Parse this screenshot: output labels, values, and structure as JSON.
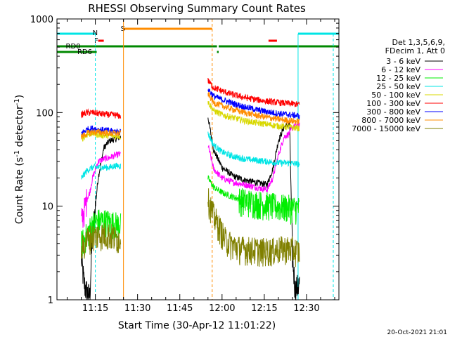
{
  "chart_data": {
    "type": "line",
    "title": "RHESSI Observing Summary Count Rates",
    "xlabel": "Start Time (30-Apr-12 11:01:22)",
    "ylabel_main": "Count Rate (s",
    "ylabel_sup1": "-1",
    "ylabel_mid": " detector",
    "ylabel_sup2": "-1",
    "ylabel_end": ")",
    "y_scale": "log",
    "ylim": [
      1,
      1000
    ],
    "x_tick_labels": [
      "11:15",
      "11:30",
      "11:45",
      "12:00",
      "12:15",
      "12:30"
    ],
    "x_tick_minutes": [
      15,
      30,
      45,
      60,
      75,
      90
    ],
    "xlim_minutes": [
      1.37,
      101.5
    ],
    "y_tick_labels": [
      "1",
      "10",
      "100",
      "1000"
    ],
    "y_tick_values": [
      1,
      10,
      100,
      1000
    ],
    "legend": {
      "header1": "Det 1,3,5,6,9,",
      "header2": "FDecim 1, Att 0",
      "placement": "right",
      "entries": [
        {
          "label": "3 - 6 keV",
          "color": "#000000"
        },
        {
          "label": "6 - 12 keV",
          "color": "#ff00ff"
        },
        {
          "label": "12 - 25 keV",
          "color": "#00ee00"
        },
        {
          "label": "25 - 50 keV",
          "color": "#00e5e5"
        },
        {
          "label": "50 - 100 keV",
          "color": "#d8d800"
        },
        {
          "label": "100 - 300 keV",
          "color": "#ff0000"
        },
        {
          "label": "300 - 800 keV",
          "color": "#0000ff"
        },
        {
          "label": "800 - 7000 keV",
          "color": "#ff8c00"
        },
        {
          "label": "7000 - 15000 keV",
          "color": "#808000"
        }
      ]
    },
    "flags": [
      {
        "label": "N",
        "color": "#00e5e5"
      },
      {
        "label": "F",
        "color": "#ff0000"
      },
      {
        "label": "S",
        "color": "#ff8c00"
      },
      {
        "label": "RD0",
        "color": "#008800"
      },
      {
        "label": "RD6",
        "color": "#008800"
      }
    ],
    "segments": [
      {
        "start": 10.0,
        "end": 24.0
      },
      {
        "start": 55.0,
        "end": 87.5
      }
    ],
    "series": [
      {
        "name": "3 - 6 keV",
        "color": "#000000",
        "seg": [
          [
            [
              10,
              2.8
            ],
            [
              11,
              1.5
            ],
            [
              12,
              1.2
            ],
            [
              13,
              1.1
            ],
            [
              14,
              5
            ],
            [
              16,
              20
            ],
            [
              18,
              42
            ],
            [
              20,
              50
            ],
            [
              22,
              52
            ],
            [
              24,
              55
            ]
          ],
          [
            [
              55,
              90
            ],
            [
              57,
              40
            ],
            [
              60,
              26
            ],
            [
              64,
              21
            ],
            [
              68,
              19
            ],
            [
              72,
              18
            ],
            [
              76,
              17
            ],
            [
              78,
              25
            ],
            [
              80,
              50
            ],
            [
              82,
              70
            ],
            [
              84,
              75
            ],
            [
              85,
              3
            ],
            [
              86,
              1.3
            ],
            [
              87.5,
              1.5
            ]
          ]
        ]
      },
      {
        "name": "6 - 12 keV",
        "color": "#ff00ff",
        "seg": [
          [
            [
              10,
              7
            ],
            [
              11,
              9
            ],
            [
              12,
              12
            ],
            [
              13,
              14
            ],
            [
              14,
              20
            ],
            [
              16,
              30
            ],
            [
              18,
              32
            ],
            [
              20,
              33
            ],
            [
              22,
              35
            ],
            [
              24,
              36
            ]
          ],
          [
            [
              55,
              45
            ],
            [
              57,
              25
            ],
            [
              60,
              20
            ],
            [
              64,
              18
            ],
            [
              68,
              17
            ],
            [
              72,
              16
            ],
            [
              76,
              15
            ],
            [
              78,
              20
            ],
            [
              80,
              35
            ],
            [
              82,
              55
            ],
            [
              84,
              60
            ],
            [
              85,
              70
            ],
            [
              86,
              72
            ],
            [
              87.5,
              75
            ]
          ]
        ]
      },
      {
        "name": "12 - 25 keV",
        "color": "#00ee00",
        "seg": [
          [
            [
              10,
              4
            ],
            [
              12,
              5
            ],
            [
              14,
              6.5
            ],
            [
              16,
              7.0
            ],
            [
              18,
              7.0
            ],
            [
              20,
              6.8
            ],
            [
              22,
              6.5
            ],
            [
              24,
              6.4
            ]
          ],
          [
            [
              55,
              20
            ],
            [
              57,
              16
            ],
            [
              60,
              14
            ],
            [
              64,
              12.5
            ],
            [
              68,
              11.5
            ],
            [
              72,
              11
            ],
            [
              76,
              10.5
            ],
            [
              80,
              10
            ],
            [
              84,
              9.8
            ],
            [
              87.5,
              9.5
            ]
          ]
        ]
      },
      {
        "name": "25 - 50 keV",
        "color": "#00e5e5",
        "seg": [
          [
            [
              10,
              20
            ],
            [
              12,
              24
            ],
            [
              14,
              26
            ],
            [
              16,
              26
            ],
            [
              18,
              26
            ],
            [
              20,
              26
            ],
            [
              22,
              27
            ],
            [
              24,
              27
            ]
          ],
          [
            [
              55,
              60
            ],
            [
              57,
              45
            ],
            [
              60,
              38
            ],
            [
              64,
              34
            ],
            [
              68,
              32
            ],
            [
              72,
              31
            ],
            [
              76,
              30
            ],
            [
              80,
              29
            ],
            [
              84,
              29
            ],
            [
              87.5,
              28
            ]
          ]
        ]
      },
      {
        "name": "50 - 100 keV",
        "color": "#d8d800",
        "seg": [
          [
            [
              10,
              52
            ],
            [
              12,
              58
            ],
            [
              14,
              60
            ],
            [
              16,
              58
            ],
            [
              18,
              57
            ],
            [
              20,
              57
            ],
            [
              22,
              56
            ],
            [
              24,
              56
            ]
          ],
          [
            [
              55,
              130
            ],
            [
              57,
              105
            ],
            [
              60,
              95
            ],
            [
              64,
              88
            ],
            [
              68,
              82
            ],
            [
              72,
              78
            ],
            [
              76,
              75
            ],
            [
              80,
              72
            ],
            [
              84,
              70
            ],
            [
              87.5,
              68
            ]
          ]
        ]
      },
      {
        "name": "100 - 300 keV",
        "color": "#ff0000",
        "seg": [
          [
            [
              10,
              95
            ],
            [
              12,
              100
            ],
            [
              14,
              100
            ],
            [
              16,
              98
            ],
            [
              18,
              96
            ],
            [
              20,
              95
            ],
            [
              22,
              94
            ],
            [
              24,
              92
            ]
          ],
          [
            [
              55,
              220
            ],
            [
              57,
              185
            ],
            [
              60,
              170
            ],
            [
              64,
              155
            ],
            [
              68,
              145
            ],
            [
              72,
              138
            ],
            [
              76,
              132
            ],
            [
              80,
              128
            ],
            [
              84,
              125
            ],
            [
              87.5,
              122
            ]
          ]
        ]
      },
      {
        "name": "300 - 800 keV",
        "color": "#0000ff",
        "seg": [
          [
            [
              10,
              60
            ],
            [
              12,
              66
            ],
            [
              14,
              68
            ],
            [
              16,
              66
            ],
            [
              18,
              65
            ],
            [
              20,
              64
            ],
            [
              22,
              63
            ],
            [
              24,
              62
            ]
          ],
          [
            [
              55,
              180
            ],
            [
              57,
              150
            ],
            [
              60,
              138
            ],
            [
              64,
              125
            ],
            [
              68,
              115
            ],
            [
              72,
              108
            ],
            [
              76,
              102
            ],
            [
              80,
              98
            ],
            [
              84,
              95
            ],
            [
              87.5,
              92
            ]
          ]
        ]
      },
      {
        "name": "800 - 7000 keV",
        "color": "#ff8c00",
        "seg": [
          [
            [
              10,
              55
            ],
            [
              12,
              60
            ],
            [
              14,
              62
            ],
            [
              16,
              62
            ],
            [
              18,
              61
            ],
            [
              20,
              60
            ],
            [
              22,
              60
            ],
            [
              24,
              60
            ]
          ],
          [
            [
              55,
              160
            ],
            [
              57,
              128
            ],
            [
              60,
              118
            ],
            [
              64,
              108
            ],
            [
              68,
              100
            ],
            [
              72,
              94
            ],
            [
              76,
              89
            ],
            [
              80,
              85
            ],
            [
              84,
              82
            ],
            [
              87.5,
              80
            ]
          ]
        ]
      },
      {
        "name": "7000 - 15000 keV",
        "color": "#808000",
        "seg": [
          [
            [
              10,
              3.5
            ],
            [
              12,
              4.5
            ],
            [
              14,
              4.8
            ],
            [
              16,
              5.0
            ],
            [
              18,
              5.0
            ],
            [
              20,
              5.0
            ],
            [
              22,
              4.6
            ],
            [
              24,
              4.5
            ]
          ],
          [
            [
              55,
              12
            ],
            [
              57,
              8
            ],
            [
              59,
              6
            ],
            [
              61,
              4.5
            ],
            [
              63,
              4
            ],
            [
              66,
              3.6
            ],
            [
              70,
              3.5
            ],
            [
              74,
              3.4
            ],
            [
              78,
              3.4
            ],
            [
              82,
              3.6
            ],
            [
              85,
              3.5
            ],
            [
              87.5,
              3.3
            ]
          ]
        ]
      }
    ],
    "footer_timestamp": "20-Oct-2021 21:01"
  }
}
